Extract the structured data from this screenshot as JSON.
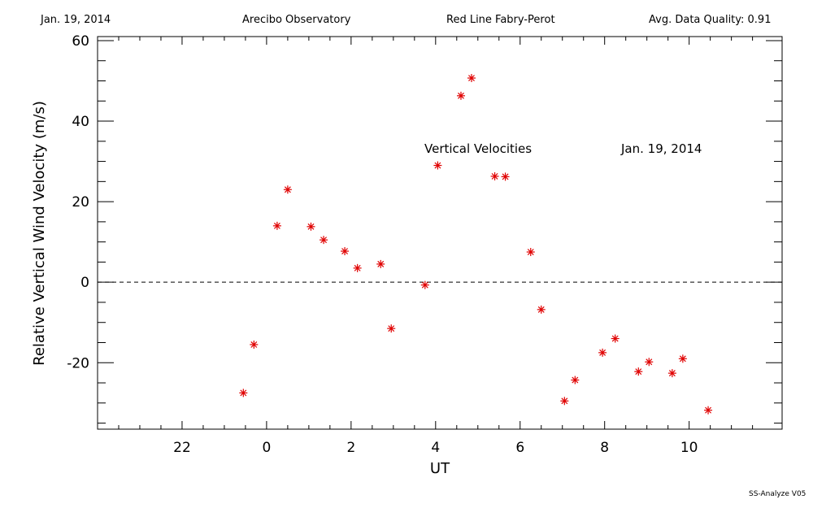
{
  "header": {
    "date": "Jan. 19, 2014",
    "observatory": "Arecibo Observatory",
    "instrument": "Red Line Fabry-Perot",
    "quality": "Avg. Data Quality: 0.91"
  },
  "footer": "SS-Analyze V05",
  "chart_data": {
    "type": "scatter",
    "xlabel": "UT",
    "ylabel": "Relative Vertical Wind Velocity (m/s)",
    "xlim": [
      -4.0,
      12.2
    ],
    "ylim": [
      -36.5,
      61
    ],
    "x_ticks": [
      22,
      0,
      2,
      4,
      6,
      8,
      10
    ],
    "y_ticks": [
      -20,
      0,
      20,
      40,
      60
    ],
    "zero_line": "dashed",
    "marker": "asterisk",
    "marker_color": "#e00000",
    "annotations": [
      "Vertical Velocities",
      "Jan. 19, 2014"
    ],
    "series": [
      {
        "x": [
          -0.55,
          -0.3,
          0.25,
          0.5,
          1.05,
          1.35,
          1.85,
          2.15,
          2.7,
          2.95,
          3.75,
          4.05,
          4.6,
          4.85,
          5.4,
          5.65,
          6.25,
          6.5,
          7.05,
          7.3,
          7.95,
          8.25,
          8.8,
          9.05,
          9.6,
          9.85,
          10.45
        ],
        "y": [
          -27.5,
          -15.5,
          14,
          23,
          13.8,
          10.5,
          7.7,
          3.5,
          4.5,
          -11.5,
          -0.7,
          29,
          46.3,
          50.7,
          26.3,
          26.2,
          7.5,
          -6.8,
          -29.5,
          -24.3,
          -17.5,
          -14,
          -22.2,
          -19.8,
          -22.6,
          -19,
          -31.8
        ]
      }
    ]
  }
}
